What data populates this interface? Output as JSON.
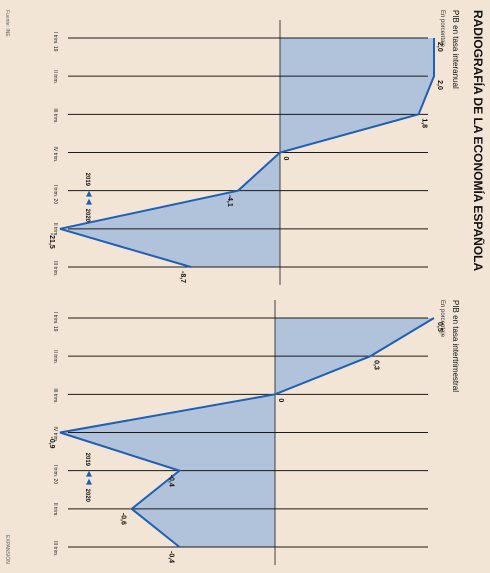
{
  "page": {
    "title": "RADIOGRAFÍA DE LA ECONOMÍA ESPAÑOLA",
    "footer_left": "Fuente: INE",
    "footer_right": "EXPANSIÓN"
  },
  "chart_data": [
    {
      "type": "area",
      "title": "PIB en tasa interanual",
      "subtitle": "En porcentaje",
      "categories": [
        "I trim. 19",
        "II trim.",
        "III trim.",
        "IV trim.",
        "I trim. 20",
        "II trim.",
        "III trim."
      ],
      "values": [
        2.0,
        2.0,
        1.8,
        0.0,
        -4.1,
        -21.5,
        -8.7
      ],
      "value_labels": [
        "2,0",
        "2,0",
        "1,8",
        "0",
        "-4,1",
        "-21,5",
        "-8,7"
      ],
      "badge": {
        "from": "2019",
        "to": "2020"
      },
      "grid": true
    },
    {
      "type": "area",
      "title": "PIB en tasa intertrimestral",
      "subtitle": "En porcentaje",
      "categories": [
        "I trim. 19",
        "II trim.",
        "III trim.",
        "IV trim.",
        "I trim. 20",
        "II trim.",
        "III trim."
      ],
      "values": [
        0.5,
        0.3,
        0.0,
        -0.9,
        -0.4,
        -0.6,
        -0.4
      ],
      "value_labels": [
        "0,5",
        "0,3",
        "0",
        "-0,9",
        "-0,4",
        "-0,6",
        "-0,4"
      ],
      "badge": {
        "from": "2019",
        "to": "2020"
      },
      "grid": true
    }
  ]
}
